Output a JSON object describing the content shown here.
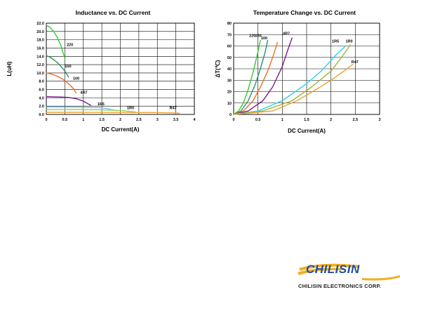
{
  "chart_data": [
    {
      "type": "line",
      "title": "Inductance vs. DC Current",
      "xlabel": "DC Current(A)",
      "ylabel": "L(uH)",
      "xlim": [
        0,
        4
      ],
      "ylim": [
        0,
        22
      ],
      "xticks": [
        "0",
        "0.5",
        "1",
        "1.5",
        "2",
        "2.5",
        "3",
        "3.5",
        "4"
      ],
      "yticks": [
        "0.0",
        "2.0",
        "4.0",
        "6.0",
        "8.0",
        "10.0",
        "12.0",
        "14.0",
        "16.0",
        "18.0",
        "20.0",
        "22.0"
      ],
      "grid": true,
      "series": [
        {
          "name": "220",
          "color": "#33cc33",
          "x": [
            0,
            0.1,
            0.2,
            0.3,
            0.4,
            0.45,
            0.5
          ],
          "y": [
            21.5,
            21.0,
            20.0,
            18.5,
            16.5,
            15.0,
            13.5
          ],
          "label_at": [
            0.55,
            16.5
          ]
        },
        {
          "name": "150",
          "color": "#2f8f6a",
          "x": [
            0,
            0.1,
            0.2,
            0.3,
            0.4,
            0.5,
            0.6
          ],
          "y": [
            14.2,
            13.8,
            13.2,
            12.5,
            11.5,
            10.5,
            9.0
          ],
          "label_at": [
            0.5,
            11.3
          ]
        },
        {
          "name": "100",
          "color": "#f07020",
          "x": [
            0,
            0.15,
            0.3,
            0.45,
            0.55,
            0.65,
            0.75,
            0.8
          ],
          "y": [
            10.0,
            9.7,
            9.2,
            8.5,
            7.8,
            7.0,
            6.0,
            5.2
          ],
          "label_at": [
            0.72,
            8.4
          ]
        },
        {
          "name": "4R7",
          "color": "#7a1f8a",
          "x": [
            0,
            0.2,
            0.4,
            0.6,
            0.8,
            1.0,
            1.1,
            1.2
          ],
          "y": [
            4.3,
            4.25,
            4.2,
            4.1,
            3.8,
            3.2,
            2.7,
            2.2
          ],
          "label_at": [
            0.92,
            5.0
          ]
        },
        {
          "name": "1R5",
          "color": "#7fc3ed",
          "x": [
            0,
            0.5,
            1.0,
            1.5,
            1.7,
            1.9
          ],
          "y": [
            1.8,
            1.8,
            1.75,
            1.6,
            1.3,
            0.9
          ],
          "label_at": [
            1.38,
            2.2
          ]
        },
        {
          "name": "1R0",
          "color": "#8fd45a",
          "x": [
            0,
            0.5,
            1.0,
            1.5,
            2.0,
            2.2,
            2.4
          ],
          "y": [
            1.2,
            1.2,
            1.18,
            1.12,
            0.95,
            0.8,
            0.6
          ],
          "label_at": [
            2.18,
            1.3
          ]
        },
        {
          "name": "R47",
          "color": "#e6a432",
          "x": [
            0,
            1.0,
            2.0,
            3.0,
            3.4,
            3.6
          ],
          "y": [
            0.5,
            0.5,
            0.48,
            0.45,
            0.38,
            0.3
          ],
          "label_at": [
            3.33,
            1.3
          ]
        }
      ]
    },
    {
      "type": "line",
      "title": "Temperature Change vs. DC Current",
      "xlabel": "DC Current(A)",
      "ylabel": "ΔT(℃)",
      "xlim": [
        0,
        3
      ],
      "ylim": [
        0,
        80
      ],
      "xticks": [
        "0",
        "0.5",
        "1",
        "1.5",
        "2",
        "2.5",
        "3"
      ],
      "yticks": [
        "0",
        "10",
        "20",
        "30",
        "40",
        "50",
        "60",
        "70",
        "80"
      ],
      "grid": true,
      "series": [
        {
          "name": "220",
          "color": "#33cc33",
          "x": [
            0,
            0.1,
            0.2,
            0.3,
            0.4,
            0.5,
            0.55
          ],
          "y": [
            0,
            3,
            10,
            22,
            37,
            55,
            65
          ],
          "label_at": [
            0.32,
            68
          ]
        },
        {
          "name": "150",
          "color": "#2f8f6a",
          "x": [
            0,
            0.15,
            0.3,
            0.45,
            0.55,
            0.65,
            0.7
          ],
          "y": [
            0,
            3,
            12,
            27,
            40,
            55,
            65
          ],
          "label_at": [
            0.44,
            68
          ]
        },
        {
          "name": "100",
          "color": "#f07020",
          "x": [
            0,
            0.2,
            0.4,
            0.55,
            0.7,
            0.8,
            0.9
          ],
          "y": [
            0,
            3,
            12,
            24,
            38,
            50,
            63
          ],
          "label_at": [
            0.56,
            66
          ]
        },
        {
          "name": "4R7",
          "color": "#7a1f8a",
          "x": [
            0,
            0.3,
            0.6,
            0.8,
            1.0,
            1.1,
            1.2
          ],
          "y": [
            0,
            3,
            12,
            24,
            42,
            55,
            67
          ],
          "label_at": [
            1.01,
            70
          ]
        },
        {
          "name": "1R5",
          "color": "#33d0e8",
          "x": [
            0,
            0.5,
            1.0,
            1.5,
            1.8,
            2.1,
            2.3
          ],
          "y": [
            0,
            3,
            12,
            27,
            38,
            52,
            60
          ],
          "label_at": [
            2.02,
            63
          ]
        },
        {
          "name": "1R0",
          "color": "#a0b33a",
          "x": [
            0,
            0.6,
            1.2,
            1.6,
            2.0,
            2.2,
            2.4
          ],
          "y": [
            0,
            3,
            12,
            24,
            38,
            49,
            61
          ],
          "label_at": [
            2.3,
            63
          ]
        },
        {
          "name": "R47",
          "color": "#e6a432",
          "x": [
            0,
            0.8,
            1.3,
            1.7,
            2.0,
            2.3,
            2.45
          ],
          "y": [
            0,
            3,
            12,
            22,
            30,
            39,
            44
          ],
          "label_at": [
            2.42,
            45
          ]
        }
      ]
    }
  ],
  "logo": {
    "brand": "CHILISIN",
    "brand_color": "#1f4ea3",
    "accent_color": "#f0b020"
  },
  "company_name": "CHILISIN ELECTRONICS CORP."
}
